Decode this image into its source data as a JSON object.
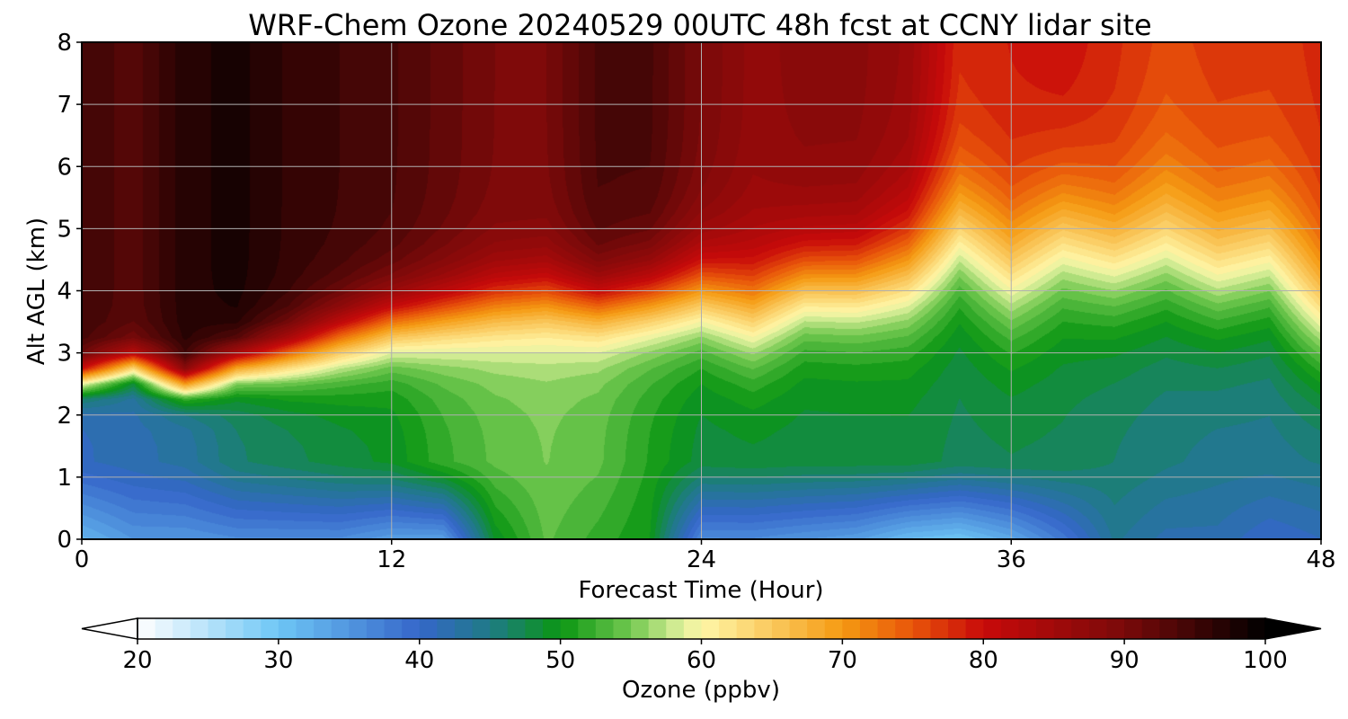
{
  "chart_data": {
    "type": "heatmap",
    "title": "WRF-Chem Ozone  20240529 00UTC 48h fcst at CCNY lidar site",
    "xlabel": "Forecast Time (Hour)",
    "ylabel": "Alt AGL (km)",
    "xlim": [
      0,
      48
    ],
    "ylim": [
      0,
      8
    ],
    "x_ticks": [
      0,
      12,
      24,
      36,
      48
    ],
    "y_ticks": [
      0,
      1,
      2,
      3,
      4,
      5,
      6,
      7,
      8
    ],
    "grid": true,
    "colorbar": {
      "label": "Ozone  (ppbv)",
      "range": [
        20,
        100
      ],
      "ticks": [
        20,
        30,
        40,
        50,
        60,
        70,
        80,
        90,
        100
      ],
      "extend": "both",
      "placement": "bottom",
      "stops": [
        {
          "v": 20,
          "c": "#ffffff"
        },
        {
          "v": 30,
          "c": "#6ec6f5"
        },
        {
          "v": 40,
          "c": "#3566c9"
        },
        {
          "v": 45,
          "c": "#1f7a86"
        },
        {
          "v": 50,
          "c": "#0a9612"
        },
        {
          "v": 55,
          "c": "#72c850"
        },
        {
          "v": 58,
          "c": "#cdea90"
        },
        {
          "v": 60,
          "c": "#fff7a8"
        },
        {
          "v": 70,
          "c": "#f59a12"
        },
        {
          "v": 75,
          "c": "#e8540a"
        },
        {
          "v": 80,
          "c": "#c80a0a"
        },
        {
          "v": 90,
          "c": "#7a0a0a"
        },
        {
          "v": 100,
          "c": "#000000"
        }
      ]
    },
    "time_hours": [
      0,
      2,
      4,
      6,
      8,
      10,
      12,
      14,
      16,
      18,
      20,
      22,
      24,
      26,
      28,
      30,
      32,
      34,
      36,
      38,
      40,
      42,
      44,
      46,
      48
    ],
    "altitude_km": [
      0,
      0.25,
      0.5,
      0.75,
      1,
      1.25,
      1.5,
      1.75,
      2,
      2.25,
      2.5,
      2.75,
      3,
      3.25,
      3.5,
      3.75,
      4,
      4.25,
      4.5,
      4.75,
      5,
      5.25,
      5.5,
      5.75,
      6,
      6.25,
      6.5,
      6.75,
      7,
      7.25,
      7.5,
      7.75,
      8
    ],
    "profile_model": {
      "ozone_ppbv": {
        "surface": [
          32,
          35,
          35,
          36,
          36,
          36,
          34,
          34,
          49,
          54,
          52,
          50,
          36,
          36,
          35,
          34,
          31,
          30,
          33,
          38,
          44,
          42,
          42,
          40,
          41
        ],
        "boundary_layer": [
          41,
          42,
          43,
          46,
          47,
          48,
          49,
          52,
          54,
          55,
          54,
          51,
          48,
          48,
          48,
          48,
          48,
          47,
          47,
          47,
          46,
          45,
          44,
          44,
          44
        ],
        "upper_free_troposphere": [
          95,
          93,
          97,
          98,
          96,
          95,
          94,
          92,
          90,
          90,
          94,
          94,
          90,
          87,
          88,
          88,
          86,
          78,
          79,
          80,
          78,
          76,
          77,
          77,
          78
        ]
      },
      "transition_height_km": [
        2.6,
        2.8,
        2.5,
        2.8,
        2.95,
        3.2,
        3.45,
        3.6,
        3.75,
        3.85,
        3.75,
        3.85,
        3.95,
        3.7,
        4.1,
        4.1,
        4.3,
        4.9,
        4.3,
        4.85,
        4.5,
        4.7,
        4.3,
        4.5,
        3.6
      ],
      "transition_width_km": [
        0.7,
        0.7,
        0.7,
        0.9,
        1.2,
        1.5,
        1.6,
        1.7,
        1.8,
        1.8,
        1.7,
        1.9,
        2.2,
        2.5,
        2.3,
        2.4,
        2.7,
        2.9,
        3.2,
        3.2,
        3.0,
        3.3,
        3.3,
        3.3,
        3.2
      ]
    }
  }
}
